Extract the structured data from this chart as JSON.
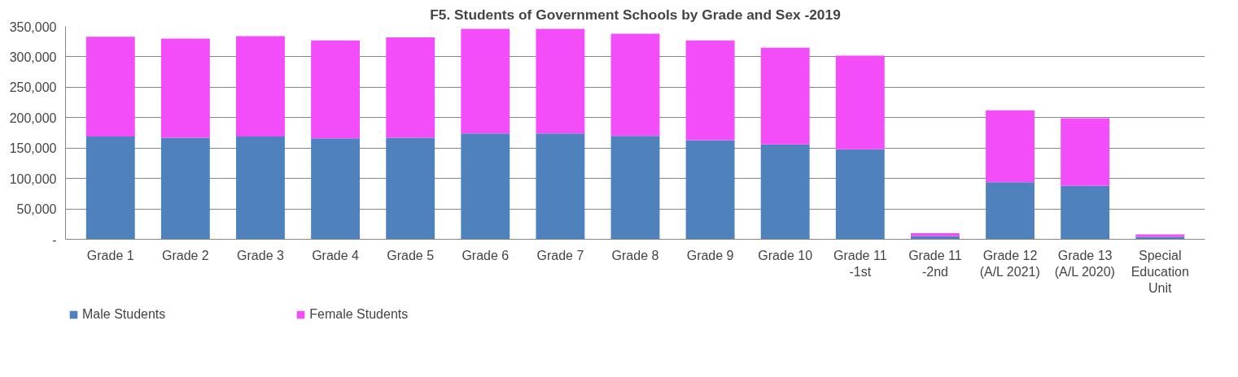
{
  "chart_data": {
    "type": "bar",
    "stacked": true,
    "title": "F5. Students of Government Schools by Grade and Sex -2019",
    "categories": [
      "Grade 1",
      "Grade 2",
      "Grade 3",
      "Grade 4",
      "Grade 5",
      "Grade 6",
      "Grade 7",
      "Grade 8",
      "Grade 9",
      "Grade 10",
      "Grade 11\n-1st",
      "Grade 11\n-2nd",
      "Grade 12\n(A/L 2021)",
      "Grade 13\n(A/L 2020)",
      "Special\nEducation\nUnit"
    ],
    "series": [
      {
        "name": "Male Students",
        "color": "#4f81bd",
        "values": [
          169000,
          167000,
          169000,
          166000,
          167000,
          174000,
          174000,
          170000,
          163000,
          156000,
          148000,
          5000,
          94000,
          88000,
          4000
        ]
      },
      {
        "name": "Female Students",
        "color": "#f34df9",
        "values": [
          164000,
          163000,
          165000,
          161000,
          165000,
          172000,
          172000,
          168000,
          164000,
          159000,
          154000,
          5000,
          118000,
          111000,
          4000
        ]
      }
    ],
    "ylim": [
      0,
      350000
    ],
    "yticks": [
      {
        "value": 0,
        "label": "-"
      },
      {
        "value": 50000,
        "label": "50,000"
      },
      {
        "value": 100000,
        "label": "100,000"
      },
      {
        "value": 150000,
        "label": "150,000"
      },
      {
        "value": 200000,
        "label": "200,000"
      },
      {
        "value": 250000,
        "label": "250,000"
      },
      {
        "value": 300000,
        "label": "300,000"
      },
      {
        "value": 350000,
        "label": "350,000"
      }
    ],
    "grid": "y",
    "legend": "bottom left"
  }
}
